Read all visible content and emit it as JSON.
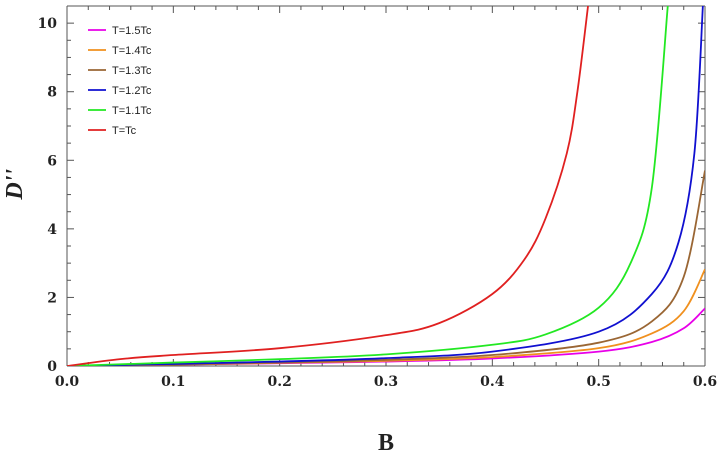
{
  "chart_data": {
    "type": "line",
    "xlabel": "B",
    "ylabel": "D''",
    "xlim": [
      0,
      0.6
    ],
    "ylim": [
      0,
      10.5
    ],
    "x_ticks": [
      "0.0",
      "0.1",
      "0.2",
      "0.3",
      "0.4",
      "0.5",
      "0.6"
    ],
    "y_ticks": [
      "0",
      "2",
      "4",
      "6",
      "8",
      "10"
    ],
    "grid": false,
    "legend_position": "top-left",
    "series": [
      {
        "name": "T=1.5Tc",
        "color": "#e800e8",
        "x": [
          0.0,
          0.1,
          0.2,
          0.3,
          0.4,
          0.5,
          0.55,
          0.58,
          0.6
        ],
        "y": [
          0.0,
          0.04,
          0.08,
          0.13,
          0.22,
          0.42,
          0.7,
          1.1,
          1.68
        ]
      },
      {
        "name": "T=1.4Tc",
        "color": "#f0901e",
        "x": [
          0.0,
          0.1,
          0.2,
          0.3,
          0.4,
          0.5,
          0.55,
          0.58,
          0.6
        ],
        "y": [
          0.0,
          0.04,
          0.09,
          0.15,
          0.26,
          0.52,
          0.95,
          1.6,
          2.82
        ]
      },
      {
        "name": "T=1.3Tc",
        "color": "#9a6634",
        "x": [
          0.0,
          0.1,
          0.2,
          0.3,
          0.4,
          0.5,
          0.55,
          0.58,
          0.6
        ],
        "y": [
          0.0,
          0.05,
          0.1,
          0.18,
          0.32,
          0.68,
          1.3,
          2.6,
          5.7
        ]
      },
      {
        "name": "T=1.2Tc",
        "color": "#1010d0",
        "x": [
          0.0,
          0.1,
          0.2,
          0.3,
          0.4,
          0.5,
          0.55,
          0.575,
          0.59,
          0.598
        ],
        "y": [
          0.0,
          0.06,
          0.13,
          0.23,
          0.42,
          1.0,
          2.1,
          3.6,
          6.2,
          10.5
        ]
      },
      {
        "name": "T=1.1Tc",
        "color": "#22e822",
        "x": [
          0.0,
          0.1,
          0.2,
          0.3,
          0.4,
          0.45,
          0.5,
          0.53,
          0.55,
          0.565
        ],
        "y": [
          0.0,
          0.1,
          0.2,
          0.34,
          0.62,
          0.92,
          1.7,
          3.0,
          5.2,
          10.5
        ]
      },
      {
        "name": "T=Tc",
        "color": "#e02020",
        "x": [
          0.0,
          0.05,
          0.1,
          0.2,
          0.3,
          0.35,
          0.4,
          0.43,
          0.45,
          0.47,
          0.48,
          0.49
        ],
        "y": [
          0.0,
          0.2,
          0.32,
          0.52,
          0.9,
          1.25,
          2.1,
          3.1,
          4.3,
          6.2,
          8.0,
          10.5
        ]
      }
    ]
  }
}
